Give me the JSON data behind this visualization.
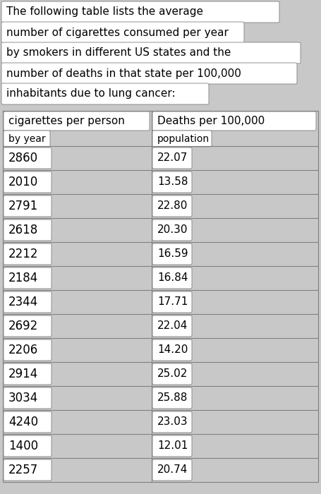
{
  "description_lines": [
    "The following table lists the average",
    "number of cigarettes consumed per year",
    "by smokers in different US states and the",
    "number of deaths in that state per 100,000",
    "inhabitants due to lung cancer:"
  ],
  "desc_box_widths": [
    390,
    340,
    420,
    415,
    290
  ],
  "col1_header1": "cigarettes per person",
  "col1_header2": "by year",
  "col2_header1": "Deaths per 100,000",
  "col2_header2": "population",
  "rows": [
    [
      "2860",
      "22.07"
    ],
    [
      "2010",
      "13.58"
    ],
    [
      "2791",
      "22.80"
    ],
    [
      "2618",
      "20.30"
    ],
    [
      "2212",
      "16.59"
    ],
    [
      "2184",
      "16.84"
    ],
    [
      "2344",
      "17.71"
    ],
    [
      "2692",
      "22.04"
    ],
    [
      "2206",
      "14.20"
    ],
    [
      "2914",
      "25.02"
    ],
    [
      "3034",
      "25.88"
    ],
    [
      "4240",
      "23.03"
    ],
    [
      "1400",
      "12.01"
    ],
    [
      "2257",
      "20.74"
    ]
  ],
  "bg_color": "#c8c8c8",
  "cell_bg": "#ffffff",
  "text_color": "#000000",
  "border_color": "#808080",
  "fig_width": 4.55,
  "fig_height": 7.0,
  "dpi": 100
}
